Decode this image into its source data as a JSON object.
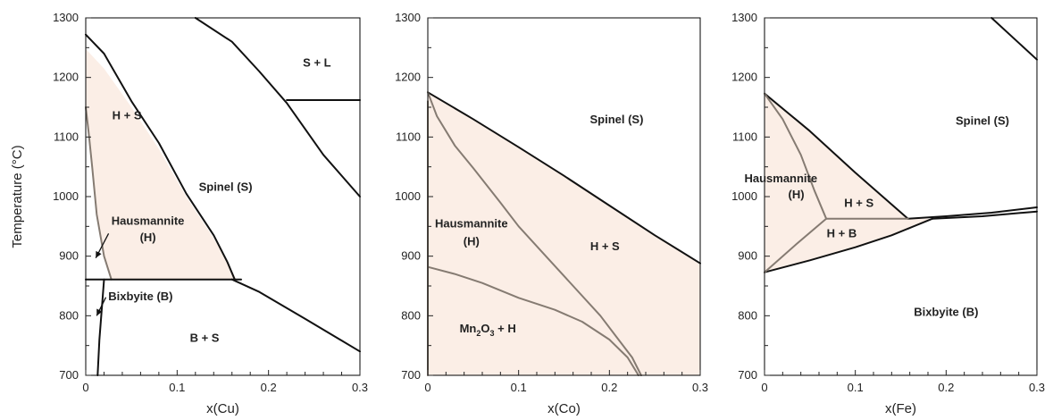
{
  "chart_data": [
    {
      "type": "phase-diagram",
      "xlabel": "x(Cu)",
      "ylabel": "Temperature (°C)",
      "xlim": [
        0,
        0.3
      ],
      "ylim": [
        700,
        1300
      ],
      "xticks": [
        "0",
        "0.1",
        "0.2",
        "0.3"
      ],
      "yticks": [
        "700",
        "800",
        "900",
        "1000",
        "1100",
        "1200",
        "1300"
      ],
      "shaded_regions": [
        {
          "points": [
            [
              0.0,
              1248
            ],
            [
              0.02,
              1215
            ],
            [
              0.05,
              1150
            ],
            [
              0.08,
              1080
            ],
            [
              0.11,
              1000
            ],
            [
              0.14,
              930
            ],
            [
              0.155,
              890
            ],
            [
              0.165,
              861
            ],
            [
              0.028,
              861
            ],
            [
              0.02,
              900
            ],
            [
              0.012,
              970
            ],
            [
              0.007,
              1050
            ],
            [
              0.003,
              1110
            ],
            [
              0.0,
              1150
            ]
          ]
        }
      ],
      "curves": [
        {
          "style": "black",
          "points": [
            [
              0.0,
              1272
            ],
            [
              0.02,
              1240
            ],
            [
              0.05,
              1160
            ],
            [
              0.08,
              1090
            ],
            [
              0.11,
              1005
            ],
            [
              0.14,
              935
            ],
            [
              0.155,
              890
            ],
            [
              0.163,
              861
            ]
          ]
        },
        {
          "style": "gray",
          "points": [
            [
              0.0,
              1150
            ],
            [
              0.003,
              1110
            ],
            [
              0.007,
              1050
            ],
            [
              0.012,
              970
            ],
            [
              0.02,
              900
            ],
            [
              0.028,
              861
            ]
          ]
        },
        {
          "style": "black",
          "points": [
            [
              0.0,
              861
            ],
            [
              0.17,
              861
            ]
          ]
        },
        {
          "style": "black",
          "points": [
            [
              0.12,
              1300
            ],
            [
              0.16,
              1260
            ],
            [
              0.19,
              1210
            ],
            [
              0.22,
              1157
            ],
            [
              0.26,
              1070
            ],
            [
              0.3,
              1000
            ]
          ]
        },
        {
          "style": "black",
          "points": [
            [
              0.22,
              1162
            ],
            [
              0.3,
              1162
            ]
          ]
        },
        {
          "style": "black",
          "points": [
            [
              0.16,
              861
            ],
            [
              0.19,
              840
            ],
            [
              0.24,
              795
            ],
            [
              0.3,
              740
            ]
          ]
        },
        {
          "style": "black",
          "points": [
            [
              0.02,
              861
            ],
            [
              0.018,
              820
            ],
            [
              0.015,
              760
            ],
            [
              0.013,
              700
            ]
          ]
        }
      ],
      "arrows": [
        {
          "from": [
            0.025,
            938
          ],
          "to": [
            0.011,
            897
          ]
        },
        {
          "from": [
            0.022,
            831
          ],
          "to": [
            0.012,
            800
          ]
        }
      ],
      "labels": [
        {
          "text": "S + L",
          "x": 0.253,
          "y": 1218
        },
        {
          "text": "H + S",
          "x": 0.045,
          "y": 1130
        },
        {
          "text": "Spinel (S)",
          "x": 0.153,
          "y": 1010
        },
        {
          "text": "Hausmannite",
          "x": 0.068,
          "y": 953
        },
        {
          "text": "(H)",
          "x": 0.068,
          "y": 925
        },
        {
          "text": "Bixbyite (B)",
          "x": 0.06,
          "y": 826
        },
        {
          "text": "B + S",
          "x": 0.13,
          "y": 756
        }
      ]
    },
    {
      "type": "phase-diagram",
      "xlabel": "x(Co)",
      "ylabel": "",
      "xlim": [
        0,
        0.3
      ],
      "ylim": [
        700,
        1300
      ],
      "xticks": [
        "0",
        "0.1",
        "0.2",
        "0.3"
      ],
      "yticks": [
        "700",
        "800",
        "900",
        "1000",
        "1100",
        "1200",
        "1300"
      ],
      "shaded_regions": [
        {
          "points": [
            [
              0.0,
              1175
            ],
            [
              0.05,
              1130
            ],
            [
              0.1,
              1083
            ],
            [
              0.15,
              1035
            ],
            [
              0.2,
              985
            ],
            [
              0.25,
              935
            ],
            [
              0.3,
              888
            ],
            [
              0.3,
              700
            ],
            [
              0.0,
              700
            ]
          ]
        }
      ],
      "curves": [
        {
          "style": "black",
          "points": [
            [
              0.0,
              1175
            ],
            [
              0.05,
              1130
            ],
            [
              0.1,
              1083
            ],
            [
              0.15,
              1035
            ],
            [
              0.2,
              985
            ],
            [
              0.25,
              935
            ],
            [
              0.3,
              888
            ]
          ]
        },
        {
          "style": "gray",
          "points": [
            [
              0.0,
              1175
            ],
            [
              0.01,
              1135
            ],
            [
              0.03,
              1085
            ],
            [
              0.05,
              1048
            ],
            [
              0.08,
              990
            ],
            [
              0.1,
              950
            ],
            [
              0.13,
              900
            ],
            [
              0.16,
              850
            ],
            [
              0.19,
              800
            ],
            [
              0.21,
              760
            ],
            [
              0.225,
              730
            ],
            [
              0.235,
              700
            ]
          ]
        },
        {
          "style": "gray",
          "points": [
            [
              0.0,
              882
            ],
            [
              0.03,
              870
            ],
            [
              0.06,
              855
            ],
            [
              0.1,
              830
            ],
            [
              0.14,
              810
            ],
            [
              0.17,
              790
            ],
            [
              0.2,
              760
            ],
            [
              0.22,
              730
            ],
            [
              0.232,
              700
            ]
          ]
        },
        {
          "style": "gray",
          "points": [
            [
              0.0,
              1160
            ],
            [
              0.0,
              700
            ]
          ]
        }
      ],
      "arrows": [],
      "labels": [
        {
          "text": "Spinel (S)",
          "x": 0.208,
          "y": 1123
        },
        {
          "text": "Hausmannite",
          "x": 0.048,
          "y": 948
        },
        {
          "text": "(H)",
          "x": 0.048,
          "y": 918
        },
        {
          "text": "H + S",
          "x": 0.195,
          "y": 910
        },
        {
          "text": "Mn",
          "x": 0.035,
          "y": 772,
          "sub": "2",
          "mid": "O",
          "sub2": "3",
          "tail": " + H"
        }
      ]
    },
    {
      "type": "phase-diagram",
      "xlabel": "x(Fe)",
      "ylabel": "",
      "xlim": [
        0,
        0.3
      ],
      "ylim": [
        700,
        1300
      ],
      "xticks": [
        "0",
        "0.1",
        "0.2",
        "0.3"
      ],
      "yticks": [
        "700",
        "800",
        "900",
        "1000",
        "1100",
        "1200",
        "1300"
      ],
      "shaded_regions": [
        {
          "points": [
            [
              0.0,
              1173
            ],
            [
              0.05,
              1110
            ],
            [
              0.1,
              1040
            ],
            [
              0.158,
              963
            ],
            [
              0.185,
              963
            ],
            [
              0.14,
              935
            ],
            [
              0.1,
              915
            ],
            [
              0.05,
              893
            ],
            [
              0.0,
              873
            ]
          ]
        }
      ],
      "curves": [
        {
          "style": "black",
          "points": [
            [
              0.0,
              1173
            ],
            [
              0.05,
              1110
            ],
            [
              0.1,
              1040
            ],
            [
              0.158,
              963
            ]
          ]
        },
        {
          "style": "black",
          "points": [
            [
              0.0,
              873
            ],
            [
              0.05,
              893
            ],
            [
              0.1,
              915
            ],
            [
              0.14,
              935
            ],
            [
              0.185,
              963
            ]
          ]
        },
        {
          "style": "black",
          "points": [
            [
              0.158,
              963
            ],
            [
              0.2,
              967
            ],
            [
              0.25,
              973
            ],
            [
              0.3,
              982
            ]
          ]
        },
        {
          "style": "black",
          "points": [
            [
              0.185,
              963
            ],
            [
              0.24,
              967
            ],
            [
              0.3,
              975
            ]
          ]
        },
        {
          "style": "black",
          "points": [
            [
              0.25,
              1300
            ],
            [
              0.3,
              1230
            ]
          ]
        },
        {
          "style": "gray",
          "points": [
            [
              0.0,
              1173
            ],
            [
              0.02,
              1130
            ],
            [
              0.04,
              1070
            ],
            [
              0.055,
              1010
            ],
            [
              0.068,
              963
            ]
          ]
        },
        {
          "style": "gray",
          "points": [
            [
              0.068,
              963
            ],
            [
              0.158,
              963
            ]
          ]
        },
        {
          "style": "gray",
          "points": [
            [
              0.0,
              873
            ],
            [
              0.035,
              920
            ],
            [
              0.068,
              963
            ]
          ]
        }
      ],
      "arrows": [],
      "labels": [
        {
          "text": "Spinel (S)",
          "x": 0.24,
          "y": 1121
        },
        {
          "text": "Hausmannite",
          "x": 0.018,
          "y": 1024
        },
        {
          "text": "(H)",
          "x": 0.035,
          "y": 997
        },
        {
          "text": "H + S",
          "x": 0.104,
          "y": 983
        },
        {
          "text": "H + B",
          "x": 0.085,
          "y": 932
        },
        {
          "text": "Bixbyite (B)",
          "x": 0.2,
          "y": 800
        }
      ]
    }
  ],
  "colors": {
    "shade": "#fbeee6",
    "black_line": "#111111",
    "gray_line": "#857b72",
    "axis": "#222222",
    "frame": "#000000"
  }
}
